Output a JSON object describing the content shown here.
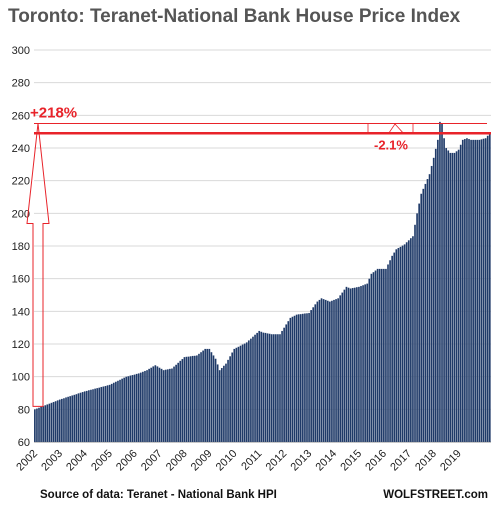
{
  "chart_data": {
    "type": "bar",
    "title": "Toronto:  Teranet-National  Bank House Price Index",
    "source": "Source of data: Teranet - National Bank HPI",
    "credit": "WOLFSTREET.com",
    "ylim": [
      60,
      300
    ],
    "yticks": [
      60,
      80,
      100,
      120,
      140,
      160,
      180,
      200,
      220,
      240,
      260,
      280,
      300
    ],
    "xticks": [
      "2002",
      "2003",
      "2004",
      "2005",
      "2006",
      "2007",
      "2008",
      "2009",
      "2010",
      "2011",
      "2012",
      "2013",
      "2014",
      "2015",
      "2016",
      "2017",
      "2018",
      "2019"
    ],
    "grid": true,
    "bar_color": "#1f3a68",
    "annotation_color": "#e8232a",
    "reference_line": 249,
    "peak_value": 255,
    "annotations": [
      {
        "text": "+218%",
        "anchor_value": 255
      },
      {
        "text": "-2.1%",
        "anchor_value": 249
      }
    ],
    "anchors": [
      [
        0,
        80
      ],
      [
        12,
        86
      ],
      [
        24,
        91
      ],
      [
        36,
        95
      ],
      [
        44,
        100
      ],
      [
        50,
        102
      ],
      [
        54,
        104
      ],
      [
        58,
        107
      ],
      [
        62,
        104
      ],
      [
        66,
        105
      ],
      [
        72,
        112
      ],
      [
        78,
        113
      ],
      [
        82,
        117
      ],
      [
        84,
        117
      ],
      [
        87,
        111
      ],
      [
        89,
        104
      ],
      [
        92,
        108
      ],
      [
        96,
        117
      ],
      [
        102,
        121
      ],
      [
        108,
        128
      ],
      [
        110,
        127
      ],
      [
        114,
        126
      ],
      [
        118,
        126
      ],
      [
        123,
        136
      ],
      [
        126,
        138
      ],
      [
        132,
        139
      ],
      [
        136,
        146
      ],
      [
        138,
        148
      ],
      [
        142,
        146
      ],
      [
        146,
        148
      ],
      [
        150,
        155
      ],
      [
        152,
        154
      ],
      [
        156,
        155
      ],
      [
        160,
        157
      ],
      [
        162,
        163
      ],
      [
        165,
        166
      ],
      [
        169,
        166
      ],
      [
        172,
        174
      ],
      [
        174,
        178
      ],
      [
        178,
        181
      ],
      [
        182,
        186
      ],
      [
        184,
        200
      ],
      [
        186,
        212
      ],
      [
        188,
        218
      ],
      [
        190,
        224
      ],
      [
        192,
        234
      ],
      [
        194,
        245
      ],
      [
        195,
        256
      ],
      [
        196,
        255
      ],
      [
        197,
        246
      ],
      [
        198,
        240
      ],
      [
        200,
        237
      ],
      [
        202,
        237
      ],
      [
        204,
        239
      ],
      [
        206,
        245
      ],
      [
        208,
        246
      ],
      [
        210,
        245
      ],
      [
        214,
        245
      ],
      [
        217,
        246
      ],
      [
        219,
        249
      ]
    ]
  }
}
